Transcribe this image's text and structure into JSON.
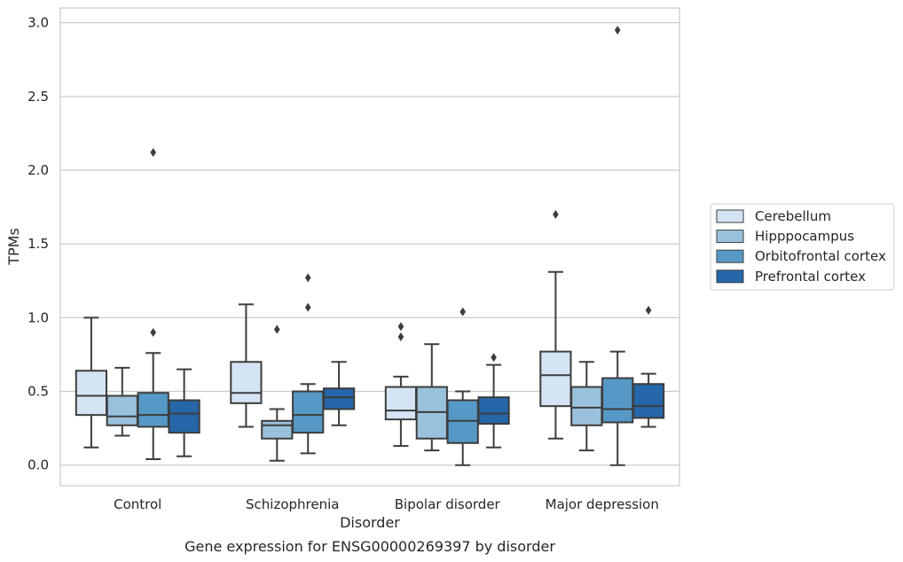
{
  "chart_data": {
    "type": "box",
    "caption": "Gene expression for ENSG00000269397 by disorder",
    "xlabel": "Disorder",
    "ylabel": "TPMs",
    "ylim": [
      -0.14,
      3.1
    ],
    "yticks": [
      "0.0",
      "0.5",
      "1.0",
      "1.5",
      "2.0",
      "2.5",
      "3.0"
    ],
    "grid": "horizontal",
    "legend_position": "right",
    "categories": [
      "Control",
      "Schizophrenia",
      "Bipolar disorder",
      "Major depression"
    ],
    "series": [
      {
        "name": "Cerebellum",
        "color": "#d4e4f4",
        "boxes": [
          {
            "min": 0.12,
            "q1": 0.34,
            "median": 0.47,
            "q3": 0.64,
            "max": 1.0,
            "outliers": []
          },
          {
            "min": 0.26,
            "q1": 0.42,
            "median": 0.49,
            "q3": 0.7,
            "max": 1.09,
            "outliers": []
          },
          {
            "min": 0.13,
            "q1": 0.31,
            "median": 0.37,
            "q3": 0.53,
            "max": 0.6,
            "outliers": [
              0.87,
              0.94
            ]
          },
          {
            "min": 0.18,
            "q1": 0.4,
            "median": 0.61,
            "q3": 0.77,
            "max": 1.31,
            "outliers": [
              1.7
            ]
          }
        ]
      },
      {
        "name": "Hipppocampus",
        "color": "#9ac1db",
        "boxes": [
          {
            "min": 0.2,
            "q1": 0.27,
            "median": 0.33,
            "q3": 0.47,
            "max": 0.66,
            "outliers": []
          },
          {
            "min": 0.03,
            "q1": 0.18,
            "median": 0.27,
            "q3": 0.3,
            "max": 0.38,
            "outliers": [
              0.92
            ]
          },
          {
            "min": 0.1,
            "q1": 0.18,
            "median": 0.36,
            "q3": 0.53,
            "max": 0.82,
            "outliers": []
          },
          {
            "min": 0.1,
            "q1": 0.27,
            "median": 0.39,
            "q3": 0.53,
            "max": 0.7,
            "outliers": []
          }
        ]
      },
      {
        "name": "Orbitofrontal cortex",
        "color": "#5699c6",
        "boxes": [
          {
            "min": 0.04,
            "q1": 0.26,
            "median": 0.34,
            "q3": 0.49,
            "max": 0.76,
            "outliers": [
              0.9,
              2.12
            ]
          },
          {
            "min": 0.08,
            "q1": 0.22,
            "median": 0.34,
            "q3": 0.5,
            "max": 0.55,
            "outliers": [
              1.07,
              1.27
            ]
          },
          {
            "min": 0.0,
            "q1": 0.15,
            "median": 0.3,
            "q3": 0.44,
            "max": 0.5,
            "outliers": [
              1.04
            ]
          },
          {
            "min": 0.0,
            "q1": 0.29,
            "median": 0.38,
            "q3": 0.59,
            "max": 0.77,
            "outliers": [
              2.95
            ]
          }
        ]
      },
      {
        "name": "Prefrontal cortex",
        "color": "#2567a8",
        "boxes": [
          {
            "min": 0.06,
            "q1": 0.22,
            "median": 0.35,
            "q3": 0.44,
            "max": 0.65,
            "outliers": []
          },
          {
            "min": 0.27,
            "q1": 0.38,
            "median": 0.46,
            "q3": 0.52,
            "max": 0.7,
            "outliers": []
          },
          {
            "min": 0.12,
            "q1": 0.28,
            "median": 0.35,
            "q3": 0.46,
            "max": 0.68,
            "outliers": [
              0.73
            ]
          },
          {
            "min": 0.26,
            "q1": 0.32,
            "median": 0.4,
            "q3": 0.55,
            "max": 0.62,
            "outliers": [
              1.05
            ]
          }
        ]
      }
    ]
  }
}
